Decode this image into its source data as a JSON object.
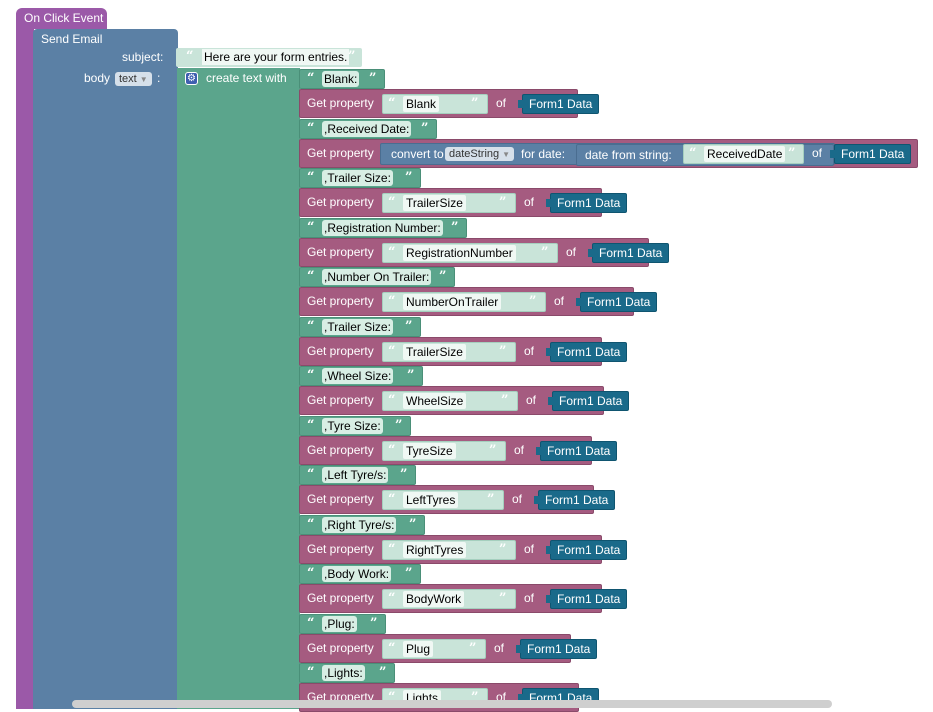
{
  "event": {
    "title": "On Click Event"
  },
  "send_email": {
    "title": "Send Email",
    "subject_label": "subject:",
    "subject_value": "Here are your form entries.",
    "body_label": "body",
    "body_type": "text",
    "body_type_arrow": "▼",
    "body_colon": ":",
    "create_text_label": "create text with"
  },
  "property_label": "Get property",
  "of_label": "of",
  "form_name": "Form1 Data",
  "rows": [
    {
      "label": "Blank:",
      "property": "Blank"
    },
    {
      "label": ",Received Date:",
      "property": "ReceivedDate"
    },
    {
      "label": ",Trailer Size:",
      "property": "TrailerSize"
    },
    {
      "label": ",Registration Number:",
      "property": "RegistrationNumber"
    },
    {
      "label": ",Number On Trailer:",
      "property": "NumberOnTrailer"
    },
    {
      "label": ",Trailer Size:",
      "property": "TrailerSize"
    },
    {
      "label": ",Wheel Size:",
      "property": "WheelSize"
    },
    {
      "label": ",Tyre Size:",
      "property": "TyreSize"
    },
    {
      "label": ",Left Tyre/s:",
      "property": "LeftTyres"
    },
    {
      "label": ",Right Tyre/s:",
      "property": "RightTyres"
    },
    {
      "label": ",Body Work:",
      "property": "BodyWork"
    },
    {
      "label": ",Plug:",
      "property": "Plug"
    },
    {
      "label": ",Lights:",
      "property": "Lights"
    }
  ],
  "date_block": {
    "convert_label": "convert to",
    "format_value": "dateString",
    "format_arrow": "▼",
    "for_date_label": "for date:",
    "from_string_label": "date from string:"
  },
  "colors": {
    "event": "#9b59a8",
    "send_email": "#5b80a5",
    "text": "#5ba58c",
    "get_property": "#a55b80",
    "form_data": "#1a6a8a"
  },
  "icons": {
    "gear": "gear-icon",
    "quote": "quote-icon"
  }
}
